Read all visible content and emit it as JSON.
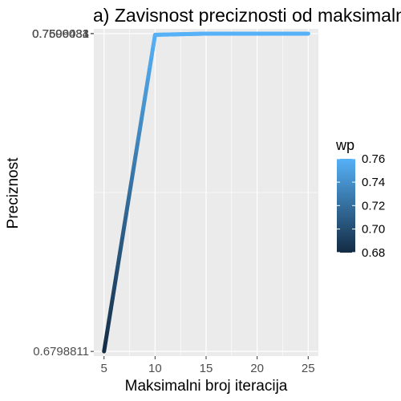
{
  "chart_data": {
    "type": "line",
    "title": "a) Zavisnost preciznosti od maksimalnog broja iteracija",
    "xlabel": "Maksimalni broj iteracija",
    "ylabel": "Preciznost",
    "x": [
      5,
      10,
      15,
      20,
      25
    ],
    "series": [
      {
        "values": [
          0.6798811,
          0.7596,
          0.7599,
          0.7599,
          0.7599
        ]
      }
    ],
    "y_tick_labels": [
      "0.6798811",
      "0.7596433",
      "0.7599034",
      "0.7600031",
      "0.7600081"
    ],
    "xlim": [
      4,
      26
    ],
    "ylim": [
      0.6787,
      0.7611
    ],
    "x_ticks": [
      5,
      10,
      15,
      20,
      25
    ],
    "legend": {
      "title": "wp",
      "position": "right",
      "labels": [
        "0.76",
        "0.74",
        "0.72",
        "0.70",
        "0.68"
      ],
      "label_values": [
        0.76,
        0.74,
        0.72,
        0.7,
        0.68
      ],
      "color_low": "#132b43",
      "color_high": "#56b1f7"
    },
    "panel_background": "#ebebeb",
    "grid": true
  }
}
